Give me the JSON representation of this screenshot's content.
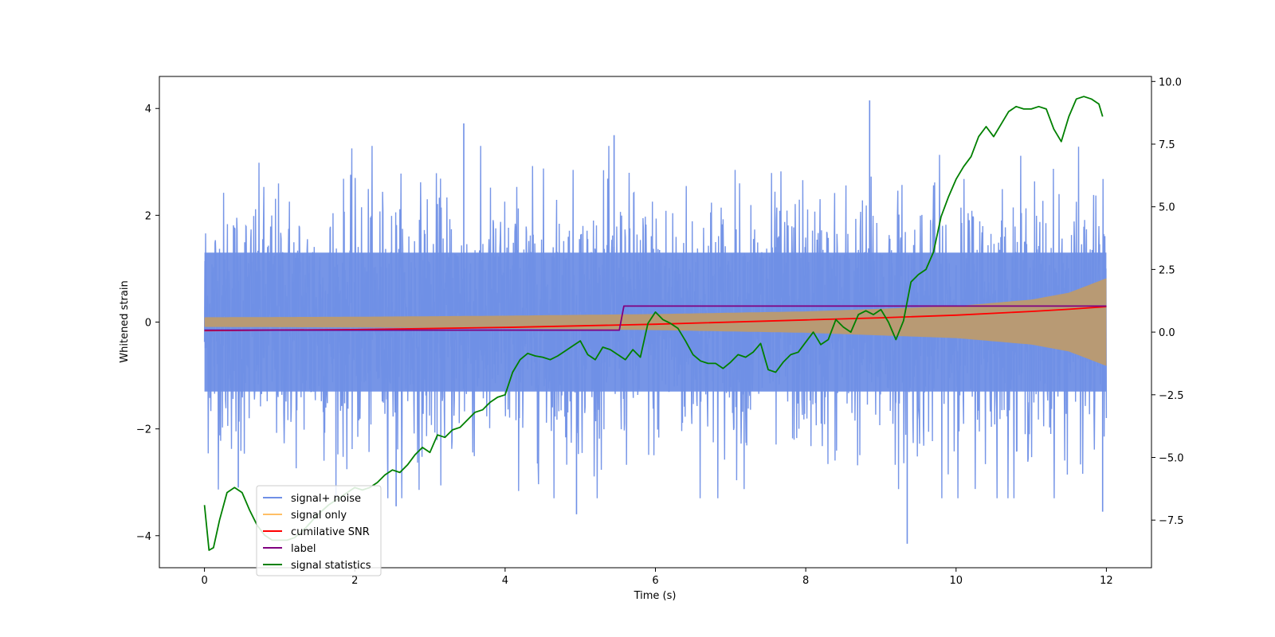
{
  "chart_data": {
    "type": "line",
    "xlabel": "Time (s)",
    "ylabel": "Whitened strain",
    "y2label": "",
    "xlim": [
      -0.6,
      12.6
    ],
    "ylim": [
      -4.6,
      4.6
    ],
    "y2lim": [
      -9.4,
      10.2
    ],
    "xticks": [
      0,
      2,
      4,
      6,
      8,
      10,
      12
    ],
    "xtick_labels": [
      "0",
      "2",
      "4",
      "6",
      "8",
      "10",
      "12"
    ],
    "yticks": [
      -4,
      -2,
      0,
      2,
      4
    ],
    "ytick_labels": [
      "−4",
      "−2",
      "0",
      "2",
      "4"
    ],
    "y2ticks": [
      -7.5,
      -5.0,
      -2.5,
      0.0,
      2.5,
      5.0,
      7.5,
      10.0
    ],
    "y2tick_labels": [
      "−7.5",
      "−5.0",
      "−2.5",
      "0.0",
      "2.5",
      "5.0",
      "7.5",
      "10.0"
    ],
    "grid": false,
    "legend_placement": "lower-left",
    "series": [
      {
        "name": "signal+ noise",
        "axis": "left",
        "color": "#6f8fe6",
        "kind": "noise-band",
        "duration": 12,
        "typical_amplitude": 2.3,
        "extremes": [
          {
            "x": 3.45,
            "y": 3.72
          },
          {
            "x": 5.45,
            "y": 3.5
          },
          {
            "x": 8.85,
            "y": 4.15
          },
          {
            "x": 0.45,
            "y": -3.1
          },
          {
            "x": 2.55,
            "y": -3.45
          },
          {
            "x": 4.95,
            "y": -3.6
          },
          {
            "x": 9.35,
            "y": -4.15
          },
          {
            "x": 11.95,
            "y": -3.55
          }
        ]
      },
      {
        "name": "signal only",
        "axis": "left",
        "color": "#ffbf66",
        "kind": "chirp-envelope",
        "x": [
          0,
          2,
          4,
          6,
          8,
          10,
          11,
          11.5,
          12
        ],
        "envelope": [
          0.09,
          0.1,
          0.12,
          0.15,
          0.2,
          0.3,
          0.42,
          0.55,
          0.82
        ]
      },
      {
        "name": "cumilative SNR",
        "axis": "left",
        "color": "#ff0000",
        "x": [
          0,
          2,
          4,
          6,
          8,
          9,
          10,
          11,
          11.5,
          12
        ],
        "y": [
          -0.16,
          -0.14,
          -0.1,
          -0.04,
          0.04,
          0.08,
          0.13,
          0.2,
          0.24,
          0.29
        ]
      },
      {
        "name": "label",
        "axis": "left",
        "color": "#800080",
        "x": [
          0,
          5.52,
          5.52,
          5.58,
          12
        ],
        "y": [
          -0.15,
          -0.15,
          -0.15,
          0.3,
          0.3
        ]
      },
      {
        "name": "signal statistics",
        "axis": "right",
        "color": "#008000",
        "x": [
          0,
          0.06,
          0.12,
          0.2,
          0.3,
          0.4,
          0.5,
          0.6,
          0.7,
          0.8,
          0.9,
          1.0,
          1.1,
          1.2,
          1.35,
          1.5,
          1.65,
          1.8,
          1.9,
          2.0,
          2.1,
          2.2,
          2.3,
          2.4,
          2.5,
          2.6,
          2.7,
          2.8,
          2.9,
          3.0,
          3.1,
          3.2,
          3.3,
          3.4,
          3.5,
          3.6,
          3.7,
          3.8,
          3.9,
          4.0,
          4.1,
          4.2,
          4.3,
          4.4,
          4.5,
          4.6,
          4.7,
          4.8,
          4.9,
          5.0,
          5.1,
          5.2,
          5.3,
          5.4,
          5.5,
          5.6,
          5.7,
          5.8,
          5.9,
          6.0,
          6.1,
          6.2,
          6.3,
          6.4,
          6.5,
          6.6,
          6.7,
          6.8,
          6.9,
          7.0,
          7.1,
          7.2,
          7.3,
          7.4,
          7.5,
          7.6,
          7.7,
          7.8,
          7.9,
          8.0,
          8.1,
          8.2,
          8.3,
          8.4,
          8.5,
          8.6,
          8.7,
          8.8,
          8.9,
          9.0,
          9.1,
          9.2,
          9.3,
          9.4,
          9.5,
          9.6,
          9.7,
          9.8,
          9.9,
          10.0,
          10.1,
          10.2,
          10.3,
          10.4,
          10.5,
          10.6,
          10.7,
          10.8,
          10.9,
          11.0,
          11.1,
          11.2,
          11.3,
          11.4,
          11.5,
          11.6,
          11.7,
          11.8,
          11.9,
          11.95
        ],
        "y": [
          -6.9,
          -8.7,
          -8.6,
          -7.5,
          -6.4,
          -6.2,
          -6.4,
          -7.1,
          -7.7,
          -8.1,
          -8.3,
          -8.3,
          -8.3,
          -8.2,
          -7.8,
          -7.3,
          -6.9,
          -6.6,
          -6.4,
          -6.2,
          -6.3,
          -6.2,
          -6.0,
          -5.7,
          -5.5,
          -5.6,
          -5.3,
          -4.9,
          -4.6,
          -4.8,
          -4.1,
          -4.2,
          -3.9,
          -3.8,
          -3.5,
          -3.2,
          -3.1,
          -2.8,
          -2.6,
          -2.5,
          -1.6,
          -1.1,
          -0.85,
          -0.95,
          -1.0,
          -1.1,
          -0.95,
          -0.75,
          -0.55,
          -0.35,
          -0.9,
          -1.1,
          -0.6,
          -0.7,
          -0.9,
          -1.1,
          -0.7,
          -1.0,
          0.35,
          0.8,
          0.5,
          0.35,
          0.15,
          -0.35,
          -0.9,
          -1.15,
          -1.25,
          -1.25,
          -1.45,
          -1.2,
          -0.9,
          -1.0,
          -0.8,
          -0.45,
          -1.5,
          -1.6,
          -1.2,
          -0.9,
          -0.8,
          -0.4,
          0.0,
          -0.5,
          -0.3,
          0.5,
          0.2,
          0.0,
          0.7,
          0.85,
          0.7,
          0.9,
          0.4,
          -0.3,
          0.45,
          2.0,
          2.3,
          2.5,
          3.2,
          4.6,
          5.4,
          6.1,
          6.6,
          7.0,
          7.8,
          8.2,
          7.8,
          8.3,
          8.8,
          9.0,
          8.9,
          8.9,
          9.0,
          8.9,
          8.1,
          7.6,
          8.6,
          9.3,
          9.4,
          9.3,
          9.1,
          8.6
        ]
      }
    ]
  }
}
